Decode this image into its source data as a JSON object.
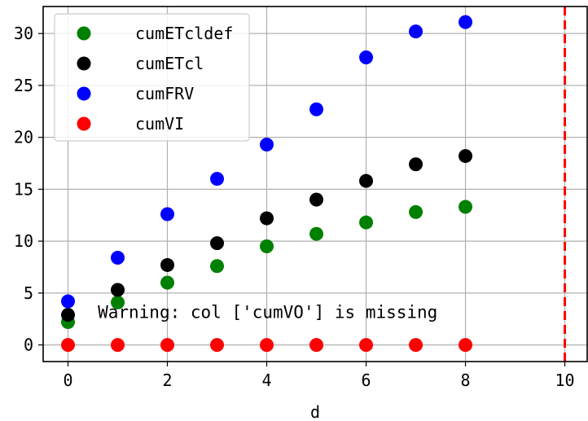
{
  "chart_data": {
    "type": "scatter",
    "xlabel": "d",
    "ylabel": "",
    "title": "",
    "xlim": [
      -0.5,
      10.45
    ],
    "ylim": [
      -1.6,
      32.6
    ],
    "xticks": [
      0,
      2,
      4,
      6,
      8,
      10
    ],
    "yticks": [
      0,
      5,
      10,
      15,
      20,
      25,
      30
    ],
    "grid": true,
    "legend_position": "upper-left",
    "vline": {
      "x": 10,
      "color": "#ff0000",
      "style": "dashed"
    },
    "annotation": {
      "text": "Warning: col ['cumVO'] is missing",
      "x": 0.6,
      "y": 2.6
    },
    "series": [
      {
        "name": "cumETcldef",
        "color": "#008000",
        "x": [
          0,
          1,
          2,
          3,
          4,
          5,
          6,
          7,
          8
        ],
        "values": [
          2.2,
          4.1,
          6.0,
          7.6,
          9.5,
          10.7,
          11.8,
          12.8,
          13.3
        ]
      },
      {
        "name": "cumETcl",
        "color": "#000000",
        "x": [
          0,
          1,
          2,
          3,
          4,
          5,
          6,
          7,
          8
        ],
        "values": [
          2.9,
          5.3,
          7.7,
          9.8,
          12.2,
          14.0,
          15.8,
          17.4,
          18.2
        ]
      },
      {
        "name": "cumFRV",
        "color": "#0000ff",
        "x": [
          0,
          1,
          2,
          3,
          4,
          5,
          6,
          7,
          8
        ],
        "values": [
          4.2,
          8.4,
          12.6,
          16.0,
          19.3,
          22.7,
          27.7,
          30.2,
          31.1
        ]
      },
      {
        "name": "cumVI",
        "color": "#ff0000",
        "x": [
          0,
          1,
          2,
          3,
          4,
          5,
          6,
          7,
          8
        ],
        "values": [
          0,
          0,
          0,
          0,
          0,
          0,
          0,
          0,
          0
        ]
      }
    ]
  }
}
